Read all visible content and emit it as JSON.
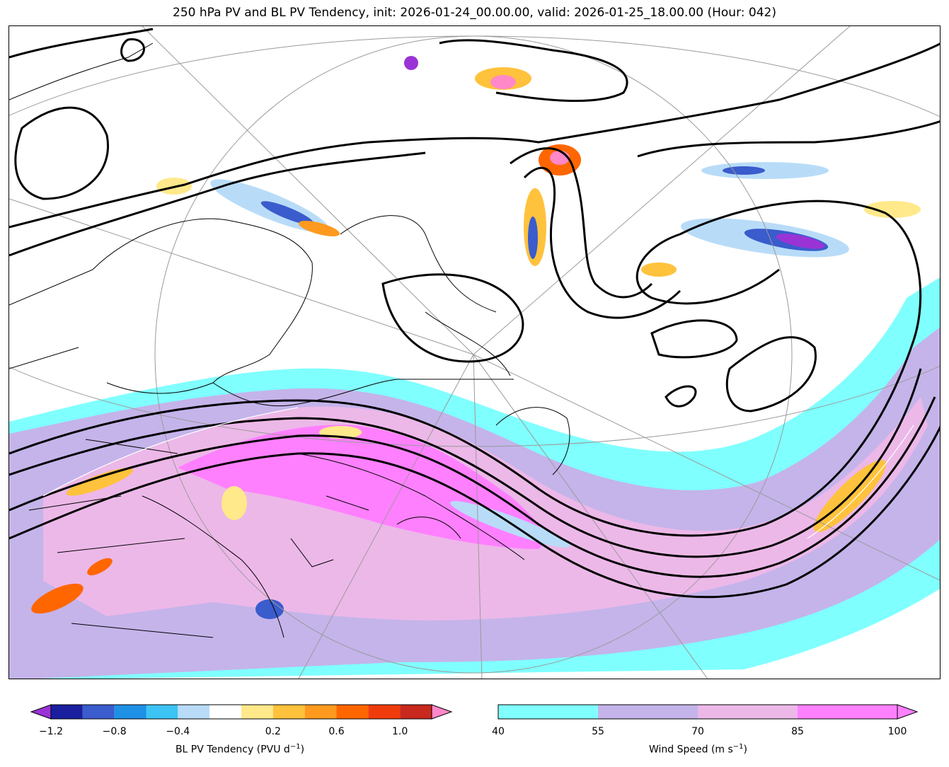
{
  "title": "250 hPa PV and BL PV Tendency, init: 2026-01-24_00.00.00, valid: 2026-01-25_18.00.00 (Hour: 042)",
  "colorbars": {
    "pv_tendency": {
      "label": "BL PV Tendency (PVU d",
      "label_sup": "−1",
      "label_end": ")",
      "ticks": [
        "−1.2",
        "−0.8",
        "−0.4",
        "0.2",
        "0.6",
        "1.0"
      ],
      "colors": [
        "#9a33d6",
        "#1a1fa0",
        "#3a5ccc",
        "#1e90e6",
        "#3cc4f5",
        "#b8dcf8",
        "#ffffff",
        "#ffe98a",
        "#ffc23c",
        "#ff9a1e",
        "#ff6600",
        "#f03c0c",
        "#c8281e",
        "#ff88c8"
      ]
    },
    "wind_speed": {
      "label": "Wind Speed (m s",
      "label_sup": "−1",
      "label_end": ")",
      "ticks": [
        "40",
        "55",
        "70",
        "85",
        "100"
      ],
      "colors": [
        "#80ffff",
        "#c4b4ea",
        "#ecb8e8",
        "#ff80ff"
      ]
    }
  }
}
